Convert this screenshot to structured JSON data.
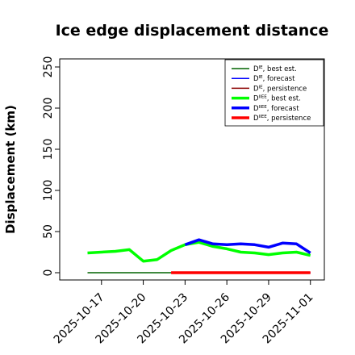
{
  "chart_data": {
    "type": "line",
    "title": "Ice edge displacement distance",
    "ylabel": "Displacement (km)",
    "xlabel": "",
    "ylim": [
      0,
      260
    ],
    "yticks": [
      0,
      50,
      100,
      150,
      200,
      250
    ],
    "x_dates": [
      "2025-10-15",
      "2025-10-16",
      "2025-10-17",
      "2025-10-18",
      "2025-10-19",
      "2025-10-20",
      "2025-10-21",
      "2025-10-22",
      "2025-10-23",
      "2025-10-24",
      "2025-10-25",
      "2025-10-26",
      "2025-10-27",
      "2025-10-28",
      "2025-10-29",
      "2025-10-30",
      "2025-10-31",
      "2025-11-01"
    ],
    "xlim": [
      "2025-10-14",
      "2025-11-02"
    ],
    "xticks": [
      "2025-10-17",
      "2025-10-20",
      "2025-10-23",
      "2025-10-26",
      "2025-10-29",
      "2025-11-01"
    ],
    "highlight_tick": "2025-10-23",
    "highlight_color": "#228B22",
    "series": [
      {
        "name": "D^IE, best est.",
        "color": "#006400",
        "width": 1.5,
        "x": [
          "2025-10-16",
          "2025-10-17",
          "2025-10-18",
          "2025-10-19",
          "2025-10-20",
          "2025-10-21",
          "2025-10-22"
        ],
        "values": [
          0,
          0,
          0,
          0,
          0,
          0,
          0
        ]
      },
      {
        "name": "D^IE, forecast",
        "color": "#0000FF",
        "width": 1.5,
        "x": [
          "2025-10-23",
          "2025-10-24",
          "2025-10-25",
          "2025-10-26",
          "2025-10-27",
          "2025-10-28",
          "2025-10-29",
          "2025-10-30",
          "2025-10-31",
          "2025-11-01"
        ],
        "values": [
          0,
          0,
          0,
          0,
          0,
          0,
          0,
          0,
          0,
          0
        ]
      },
      {
        "name": "D^IE, persistence",
        "color": "#8B0000",
        "width": 1.5,
        "x": [
          "2025-10-22",
          "2025-10-23",
          "2025-10-24",
          "2025-10-25",
          "2025-10-26",
          "2025-10-27",
          "2025-10-28",
          "2025-10-29",
          "2025-10-30",
          "2025-10-31",
          "2025-11-01"
        ],
        "values": [
          0,
          0,
          0,
          0,
          0,
          0,
          0,
          0,
          0,
          0,
          0
        ]
      },
      {
        "name": "D^IIEE, best est.",
        "color": "#00FF00",
        "width": 3.5,
        "x": [
          "2025-10-16",
          "2025-10-17",
          "2025-10-18",
          "2025-10-19",
          "2025-10-20",
          "2025-10-21",
          "2025-10-22",
          "2025-10-23",
          "2025-10-24",
          "2025-10-25",
          "2025-10-26",
          "2025-10-27",
          "2025-10-28",
          "2025-10-29",
          "2025-10-30",
          "2025-10-31",
          "2025-11-01"
        ],
        "values": [
          24,
          25,
          26,
          28,
          14,
          16,
          27,
          34,
          37,
          32,
          29,
          25,
          24,
          22,
          24,
          25,
          21
        ]
      },
      {
        "name": "D^IIEE, forecast",
        "color": "#0000FF",
        "width": 3.5,
        "x": [
          "2025-10-23",
          "2025-10-24",
          "2025-10-25",
          "2025-10-26",
          "2025-10-27",
          "2025-10-28",
          "2025-10-29",
          "2025-10-30",
          "2025-10-31",
          "2025-11-01"
        ],
        "values": [
          34,
          40,
          35,
          34,
          35,
          34,
          31,
          36,
          35,
          24
        ]
      },
      {
        "name": "D^IIEE, persistence",
        "color": "#FF0000",
        "width": 3.5,
        "x": [
          "2025-10-22",
          "2025-10-23",
          "2025-10-24",
          "2025-10-25",
          "2025-10-26",
          "2025-10-27",
          "2025-10-28",
          "2025-10-29",
          "2025-10-30",
          "2025-10-31",
          "2025-11-01"
        ],
        "values": [
          0,
          0,
          0,
          0,
          0,
          0,
          0,
          0,
          0,
          0,
          0
        ]
      }
    ],
    "legend": {
      "placement": "top-right",
      "entries": [
        {
          "base": "D",
          "sup": "IE",
          "label": ", best est.",
          "color": "#006400",
          "thick": false
        },
        {
          "base": "D",
          "sup": "IE",
          "label": ", forecast",
          "color": "#0000FF",
          "thick": false
        },
        {
          "base": "D",
          "sup": "IE",
          "label": ", persistence",
          "color": "#8B0000",
          "thick": false
        },
        {
          "base": "D",
          "sup": "IIEE",
          "label": ", best est.",
          "color": "#00FF00",
          "thick": true
        },
        {
          "base": "D",
          "sup": "IIEE",
          "label": ", forecast",
          "color": "#0000FF",
          "thick": true
        },
        {
          "base": "D",
          "sup": "IIEE",
          "label": ", persistence",
          "color": "#FF0000",
          "thick": true
        }
      ]
    }
  }
}
